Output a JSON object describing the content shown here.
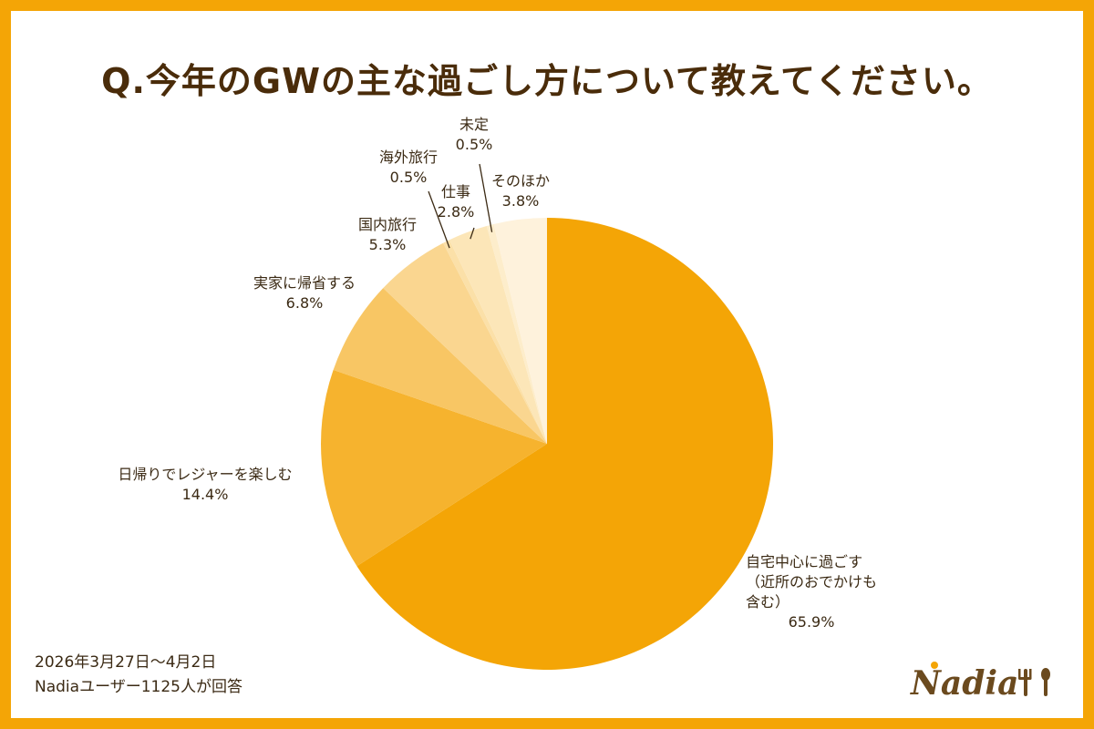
{
  "header": {
    "question": "Q.今年のGWの主な過ごし方について教えてください。"
  },
  "footer": {
    "period": "2026年3月27日〜4月2日",
    "respondents": "Nadiaユーザー1125人が回答"
  },
  "brand": {
    "logo_text": "Nadia"
  },
  "chart_data": {
    "type": "pie",
    "title": "Q.今年のGWの主な過ごし方について教えてください。",
    "start": "12 o'clock, clockwise",
    "slices": [
      {
        "label": "自宅中心に過ごす（近所のおでかけも含む）",
        "value": 65.9,
        "value_label": "65.9%",
        "color": "#F4A506",
        "label_lines": [
          "自宅中心に過ごす",
          "（近所のおでかけも",
          "含む）"
        ]
      },
      {
        "label": "日帰りでレジャーを楽しむ",
        "value": 14.4,
        "value_label": "14.4%",
        "color": "#F6B32E",
        "label_lines": [
          "日帰りでレジャーを楽しむ"
        ]
      },
      {
        "label": "実家に帰省する",
        "value": 6.8,
        "value_label": "6.8%",
        "color": "#F8C664",
        "label_lines": [
          "実家に帰省する"
        ]
      },
      {
        "label": "国内旅行",
        "value": 5.3,
        "value_label": "5.3%",
        "color": "#FAD690",
        "label_lines": [
          "国内旅行"
        ]
      },
      {
        "label": "海外旅行",
        "value": 0.5,
        "value_label": "0.5%",
        "color": "#FBE0A8",
        "label_lines": [
          "海外旅行"
        ]
      },
      {
        "label": "仕事",
        "value": 2.8,
        "value_label": "2.8%",
        "color": "#FCE6B8",
        "label_lines": [
          "仕事"
        ]
      },
      {
        "label": "未定",
        "value": 0.5,
        "value_label": "0.5%",
        "color": "#FDEDCB",
        "label_lines": [
          "未定"
        ]
      },
      {
        "label": "そのほか",
        "value": 3.8,
        "value_label": "3.8%",
        "color": "#FEF2DC",
        "label_lines": [
          "そのほか"
        ]
      }
    ]
  }
}
